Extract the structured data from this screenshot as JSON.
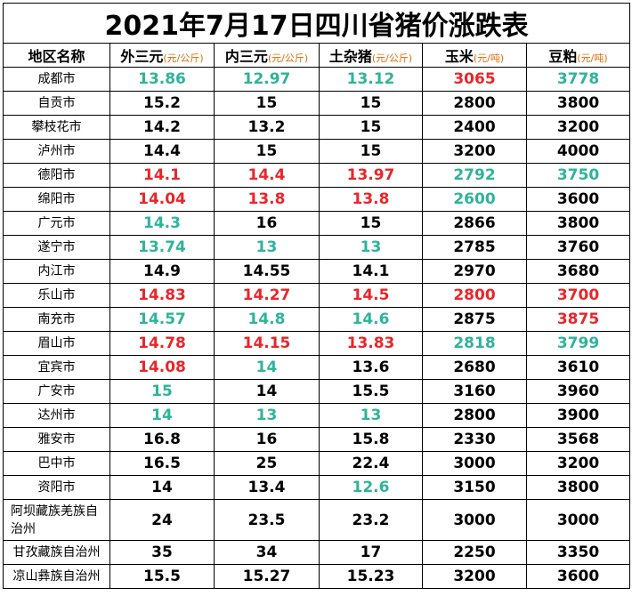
{
  "title": "2021年7月17日四川省猪价涨跌表",
  "headers": [
    {
      "label": "地区名称",
      "unit": ""
    },
    {
      "label": "外三元",
      "unit": "(元/公斤)"
    },
    {
      "label": "内三元",
      "unit": "(元/公斤)"
    },
    {
      "label": "土杂猪",
      "unit": "(元/公斤)"
    },
    {
      "label": "玉米",
      "unit": "(元/吨)"
    },
    {
      "label": "豆粕",
      "unit": "(元/吨)"
    }
  ],
  "colors": {
    "up": "#e8262a",
    "down": "#2fb39a",
    "flat": "#000000",
    "unit": "#e36c09"
  },
  "rows": [
    {
      "region": "成都市",
      "cells": [
        {
          "v": "13.86",
          "c": "green"
        },
        {
          "v": "12.97",
          "c": "green"
        },
        {
          "v": "13.12",
          "c": "green"
        },
        {
          "v": "3065",
          "c": "red"
        },
        {
          "v": "3778",
          "c": "green"
        }
      ]
    },
    {
      "region": "自贡市",
      "cells": [
        {
          "v": "15.2",
          "c": "black"
        },
        {
          "v": "15",
          "c": "black"
        },
        {
          "v": "15",
          "c": "black"
        },
        {
          "v": "2800",
          "c": "black"
        },
        {
          "v": "3800",
          "c": "black"
        }
      ]
    },
    {
      "region": "攀枝花市",
      "cells": [
        {
          "v": "14.2",
          "c": "black"
        },
        {
          "v": "13.2",
          "c": "black"
        },
        {
          "v": "15",
          "c": "black"
        },
        {
          "v": "2400",
          "c": "black"
        },
        {
          "v": "3200",
          "c": "black"
        }
      ]
    },
    {
      "region": "泸州市",
      "cells": [
        {
          "v": "14.4",
          "c": "black"
        },
        {
          "v": "15",
          "c": "black"
        },
        {
          "v": "15",
          "c": "black"
        },
        {
          "v": "3200",
          "c": "black"
        },
        {
          "v": "4000",
          "c": "black"
        }
      ]
    },
    {
      "region": "德阳市",
      "cells": [
        {
          "v": "14.1",
          "c": "red"
        },
        {
          "v": "14.4",
          "c": "red"
        },
        {
          "v": "13.97",
          "c": "red"
        },
        {
          "v": "2792",
          "c": "green"
        },
        {
          "v": "3750",
          "c": "green"
        }
      ]
    },
    {
      "region": "绵阳市",
      "cells": [
        {
          "v": "14.04",
          "c": "red"
        },
        {
          "v": "13.8",
          "c": "red"
        },
        {
          "v": "13.8",
          "c": "red"
        },
        {
          "v": "2600",
          "c": "green"
        },
        {
          "v": "3600",
          "c": "black"
        }
      ]
    },
    {
      "region": "广元市",
      "cells": [
        {
          "v": "14.3",
          "c": "green"
        },
        {
          "v": "16",
          "c": "black"
        },
        {
          "v": "15",
          "c": "black"
        },
        {
          "v": "2866",
          "c": "black"
        },
        {
          "v": "3800",
          "c": "black"
        }
      ]
    },
    {
      "region": "遂宁市",
      "cells": [
        {
          "v": "13.74",
          "c": "green"
        },
        {
          "v": "13",
          "c": "green"
        },
        {
          "v": "13",
          "c": "green"
        },
        {
          "v": "2785",
          "c": "black"
        },
        {
          "v": "3760",
          "c": "black"
        }
      ]
    },
    {
      "region": "内江市",
      "cells": [
        {
          "v": "14.9",
          "c": "black"
        },
        {
          "v": "14.55",
          "c": "black"
        },
        {
          "v": "14.1",
          "c": "black"
        },
        {
          "v": "2970",
          "c": "black"
        },
        {
          "v": "3680",
          "c": "black"
        }
      ]
    },
    {
      "region": "乐山市",
      "cells": [
        {
          "v": "14.83",
          "c": "red"
        },
        {
          "v": "14.27",
          "c": "red"
        },
        {
          "v": "14.5",
          "c": "red"
        },
        {
          "v": "2800",
          "c": "red"
        },
        {
          "v": "3700",
          "c": "red"
        }
      ]
    },
    {
      "region": "南充市",
      "cells": [
        {
          "v": "14.57",
          "c": "green"
        },
        {
          "v": "14.8",
          "c": "green"
        },
        {
          "v": "14.6",
          "c": "green"
        },
        {
          "v": "2875",
          "c": "black"
        },
        {
          "v": "3875",
          "c": "red"
        }
      ]
    },
    {
      "region": "眉山市",
      "cells": [
        {
          "v": "14.78",
          "c": "red"
        },
        {
          "v": "14.15",
          "c": "red"
        },
        {
          "v": "13.83",
          "c": "red"
        },
        {
          "v": "2818",
          "c": "green"
        },
        {
          "v": "3799",
          "c": "green"
        }
      ]
    },
    {
      "region": "宜宾市",
      "cells": [
        {
          "v": "14.08",
          "c": "red"
        },
        {
          "v": "14",
          "c": "green"
        },
        {
          "v": "13.6",
          "c": "black"
        },
        {
          "v": "2680",
          "c": "black"
        },
        {
          "v": "3610",
          "c": "black"
        }
      ]
    },
    {
      "region": "广安市",
      "cells": [
        {
          "v": "15",
          "c": "green"
        },
        {
          "v": "14",
          "c": "black"
        },
        {
          "v": "15.5",
          "c": "black"
        },
        {
          "v": "3160",
          "c": "black"
        },
        {
          "v": "3960",
          "c": "black"
        }
      ]
    },
    {
      "region": "达州市",
      "cells": [
        {
          "v": "14",
          "c": "green"
        },
        {
          "v": "13",
          "c": "green"
        },
        {
          "v": "13",
          "c": "green"
        },
        {
          "v": "2800",
          "c": "black"
        },
        {
          "v": "3900",
          "c": "black"
        }
      ]
    },
    {
      "region": "雅安市",
      "cells": [
        {
          "v": "16.8",
          "c": "black"
        },
        {
          "v": "16",
          "c": "black"
        },
        {
          "v": "15.8",
          "c": "black"
        },
        {
          "v": "2330",
          "c": "black"
        },
        {
          "v": "3568",
          "c": "black"
        }
      ]
    },
    {
      "region": "巴中市",
      "cells": [
        {
          "v": "16.5",
          "c": "black"
        },
        {
          "v": "25",
          "c": "black"
        },
        {
          "v": "22.4",
          "c": "black"
        },
        {
          "v": "3000",
          "c": "black"
        },
        {
          "v": "3200",
          "c": "black"
        }
      ]
    },
    {
      "region": "资阳市",
      "cells": [
        {
          "v": "14",
          "c": "black"
        },
        {
          "v": "13.4",
          "c": "black"
        },
        {
          "v": "12.6",
          "c": "green"
        },
        {
          "v": "3150",
          "c": "black"
        },
        {
          "v": "3800",
          "c": "black"
        }
      ]
    },
    {
      "region": "阿坝藏族羌族自治州",
      "cells": [
        {
          "v": "24",
          "c": "black"
        },
        {
          "v": "23.5",
          "c": "black"
        },
        {
          "v": "23.2",
          "c": "black"
        },
        {
          "v": "3000",
          "c": "black"
        },
        {
          "v": "3000",
          "c": "black"
        }
      ]
    },
    {
      "region": "甘孜藏族自治州",
      "cells": [
        {
          "v": "35",
          "c": "black"
        },
        {
          "v": "34",
          "c": "black"
        },
        {
          "v": "17",
          "c": "black"
        },
        {
          "v": "2250",
          "c": "black"
        },
        {
          "v": "3350",
          "c": "black"
        }
      ]
    },
    {
      "region": "凉山彝族自治州",
      "cells": [
        {
          "v": "15.5",
          "c": "black"
        },
        {
          "v": "15.27",
          "c": "black"
        },
        {
          "v": "15.23",
          "c": "black"
        },
        {
          "v": "3200",
          "c": "black"
        },
        {
          "v": "3600",
          "c": "black"
        }
      ]
    }
  ]
}
